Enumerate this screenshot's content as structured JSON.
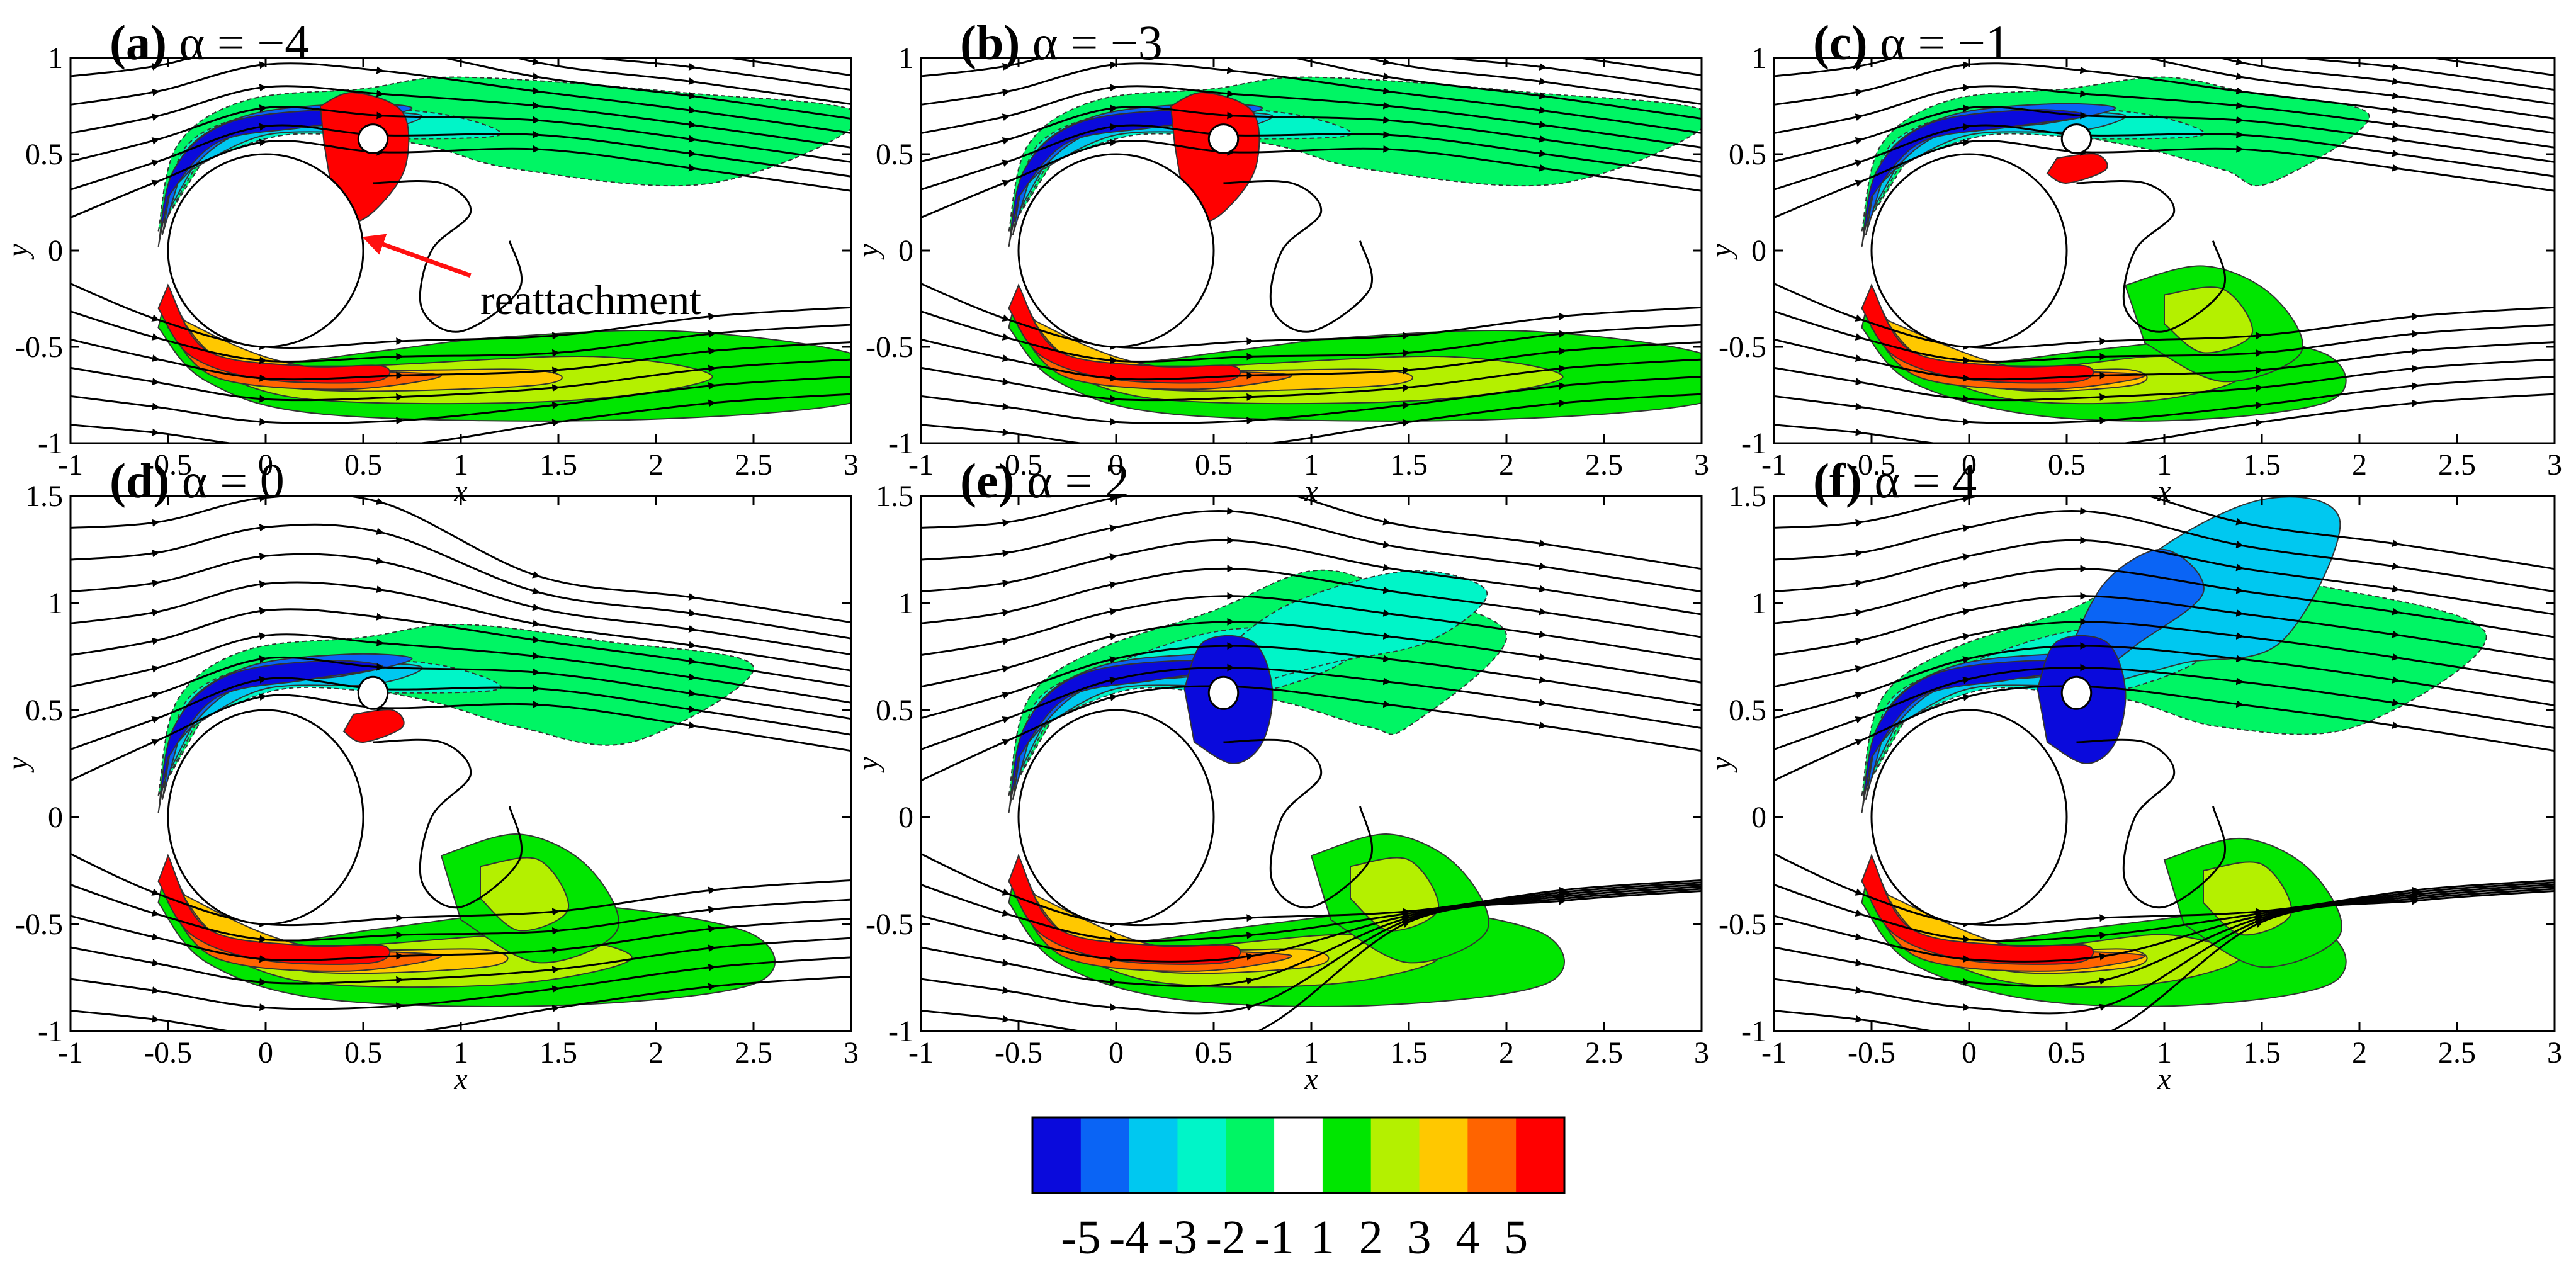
{
  "figure": {
    "annotation": "reattachment",
    "colorbar_labels": [
      "-5",
      "-4",
      "-3",
      "-2",
      "-1",
      "1",
      "2",
      "3",
      "4",
      "5"
    ],
    "colorbar_colors": [
      "#0a0adc",
      "#0a64f5",
      "#00c8f0",
      "#00f5c8",
      "#00f564",
      "#ffffff",
      "#00e600",
      "#b4f000",
      "#ffc800",
      "#ff6400",
      "#ff0000"
    ]
  },
  "panels": [
    {
      "id": "a",
      "letter": "(a)",
      "title": " α = −4",
      "xlabel": "x",
      "ylabel": "y",
      "xticks": [
        "-1",
        "-0.5",
        "0",
        "0.5",
        "1",
        "1.5",
        "2",
        "2.5",
        "3"
      ],
      "yticks": [
        "1",
        "0.5",
        "0",
        "-0.5",
        "-1"
      ],
      "ylim": [
        -1,
        1
      ],
      "alpha": -4,
      "show_annotation": true
    },
    {
      "id": "b",
      "letter": "(b)",
      "title": " α = −3",
      "xlabel": "x",
      "ylabel": "y",
      "xticks": [
        "-1",
        "-0.5",
        "0",
        "0.5",
        "1",
        "1.5",
        "2",
        "2.5",
        "3"
      ],
      "yticks": [
        "1",
        "0.5",
        "0",
        "-0.5",
        "-1"
      ],
      "ylim": [
        -1,
        1
      ],
      "alpha": -3,
      "show_annotation": false
    },
    {
      "id": "c",
      "letter": "(c)",
      "title": " α = −1",
      "xlabel": "x",
      "ylabel": "y",
      "xticks": [
        "-1",
        "-0.5",
        "0",
        "0.5",
        "1",
        "1.5",
        "2",
        "2.5",
        "3"
      ],
      "yticks": [
        "1",
        "0.5",
        "0",
        "-0.5",
        "-1"
      ],
      "ylim": [
        -1,
        1
      ],
      "alpha": -1,
      "show_annotation": false
    },
    {
      "id": "d",
      "letter": "(d)",
      "title": " α = 0",
      "xlabel": "x",
      "ylabel": "y",
      "xticks": [
        "-1",
        "-0.5",
        "0",
        "0.5",
        "1",
        "1.5",
        "2",
        "2.5",
        "3"
      ],
      "yticks": [
        "1.5",
        "1",
        "0.5",
        "0",
        "-0.5",
        "-1"
      ],
      "ylim": [
        -1,
        1.5
      ],
      "alpha": 0,
      "show_annotation": false
    },
    {
      "id": "e",
      "letter": "(e)",
      "title": " α = 2",
      "xlabel": "x",
      "ylabel": "y",
      "xticks": [
        "-1",
        "-0.5",
        "0",
        "0.5",
        "1",
        "1.5",
        "2",
        "2.5",
        "3"
      ],
      "yticks": [
        "1.5",
        "1",
        "0.5",
        "0",
        "-0.5",
        "-1"
      ],
      "ylim": [
        -1,
        1.5
      ],
      "alpha": 2,
      "show_annotation": false
    },
    {
      "id": "f",
      "letter": "(f)",
      "title": " α = 4",
      "xlabel": "x",
      "ylabel": "y",
      "xticks": [
        "-1",
        "-0.5",
        "0",
        "0.5",
        "1",
        "1.5",
        "2",
        "2.5",
        "3"
      ],
      "yticks": [
        "1.5",
        "1",
        "0.5",
        "0",
        "-0.5",
        "-1"
      ],
      "ylim": [
        -1,
        1.5
      ],
      "alpha": 4,
      "show_annotation": false
    }
  ]
}
